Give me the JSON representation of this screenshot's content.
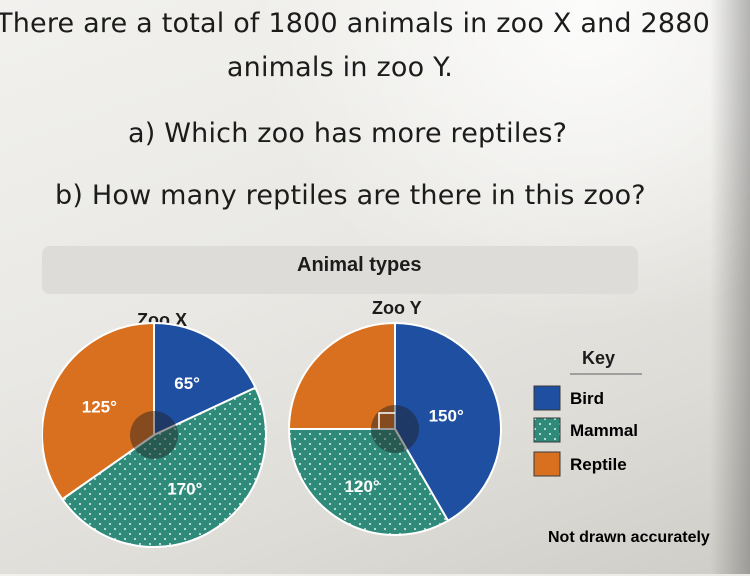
{
  "question": {
    "line1": "There are a total of 1800 animals in zoo X and 2880",
    "line2": "animals in zoo Y.",
    "part_a": "a) Which zoo has more reptiles?",
    "part_b": "b) How many reptiles are there in this zoo?"
  },
  "figure": {
    "title": "Animal types",
    "note": "Not drawn accurately",
    "key": {
      "title": "Key",
      "items": [
        {
          "label": "Bird",
          "color": "#1f4fa0"
        },
        {
          "label": "Mammal",
          "color": "#2f8a7a"
        },
        {
          "label": "Reptile",
          "color": "#d9701f"
        }
      ]
    }
  },
  "chart_data": [
    {
      "type": "pie",
      "title": "Zoo X",
      "slices": [
        {
          "name": "Bird",
          "angle_deg": 65,
          "label": "65°",
          "color": "#1f4fa0"
        },
        {
          "name": "Mammal",
          "angle_deg": 170,
          "label": "170°",
          "color": "#2f8a7a"
        },
        {
          "name": "Reptile",
          "angle_deg": 125,
          "label": "125°",
          "color": "#d9701f"
        }
      ]
    },
    {
      "type": "pie",
      "title": "Zoo Y",
      "slices": [
        {
          "name": "Bird",
          "angle_deg": 150,
          "label": "150°",
          "color": "#1f4fa0"
        },
        {
          "name": "Mammal",
          "angle_deg": 120,
          "label": "120°",
          "color": "#2f8a7a"
        },
        {
          "name": "Reptile",
          "angle_deg": 90,
          "label": "",
          "color": "#d9701f"
        }
      ]
    }
  ]
}
